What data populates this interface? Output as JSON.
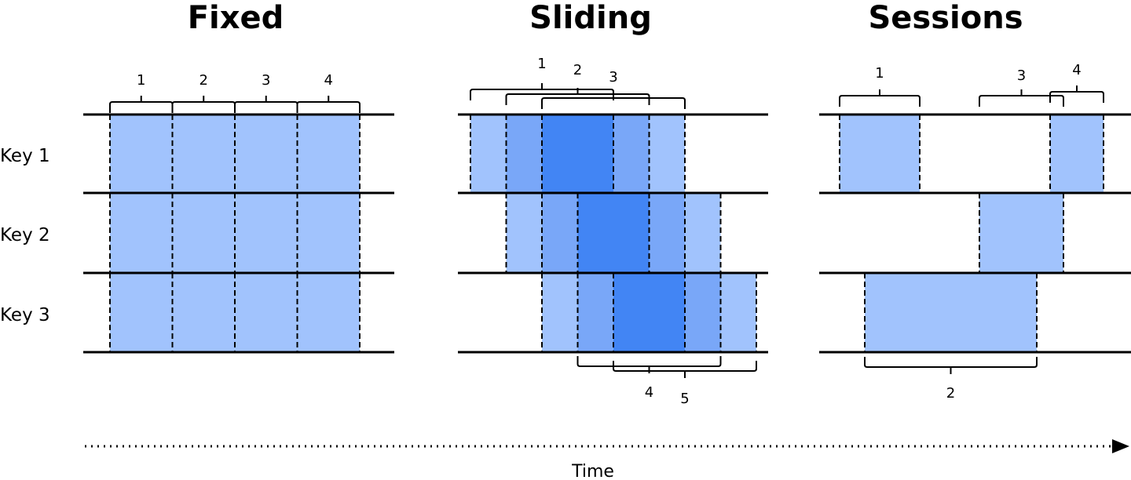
{
  "keys": [
    "Key 1",
    "Key 2",
    "Key 3"
  ],
  "time_label": "Time",
  "colors": {
    "one_window": "#a1c3fd",
    "two_windows": "#79a7f8",
    "three_windows": "#4285f4",
    "line": "#000000"
  },
  "panels": [
    {
      "title": "Fixed",
      "windows": [
        {
          "label": "1",
          "rows": [
            0,
            1,
            2
          ],
          "start": 0,
          "end": 1
        },
        {
          "label": "2",
          "rows": [
            0,
            1,
            2
          ],
          "start": 1,
          "end": 2
        },
        {
          "label": "3",
          "rows": [
            0,
            1,
            2
          ],
          "start": 2,
          "end": 3
        },
        {
          "label": "4",
          "rows": [
            0,
            1,
            2
          ],
          "start": 3,
          "end": 4
        }
      ]
    },
    {
      "title": "Sliding",
      "windows": [
        {
          "label": "1",
          "rows": [
            0
          ],
          "start": 0,
          "end": 4
        },
        {
          "label": "2",
          "rows": [
            0,
            1
          ],
          "start": 1,
          "end": 5
        },
        {
          "label": "3",
          "rows": [
            0,
            1,
            2
          ],
          "start": 2,
          "end": 6
        },
        {
          "label": "4",
          "rows": [
            1,
            2
          ],
          "start": 3,
          "end": 7
        },
        {
          "label": "5",
          "rows": [
            2
          ],
          "start": 4,
          "end": 8
        }
      ]
    },
    {
      "title": "Sessions",
      "windows": [
        {
          "label": "1",
          "rows": [
            0
          ],
          "start": 0,
          "end": 10.2
        },
        {
          "label": "2",
          "rows": [
            2
          ],
          "start": 3.2,
          "end": 25.1
        },
        {
          "label": "3",
          "rows": [
            1
          ],
          "start": 17.8,
          "end": 28.5
        },
        {
          "label": "4",
          "rows": [
            0
          ],
          "start": 26.8,
          "end": 33.6
        }
      ]
    }
  ]
}
